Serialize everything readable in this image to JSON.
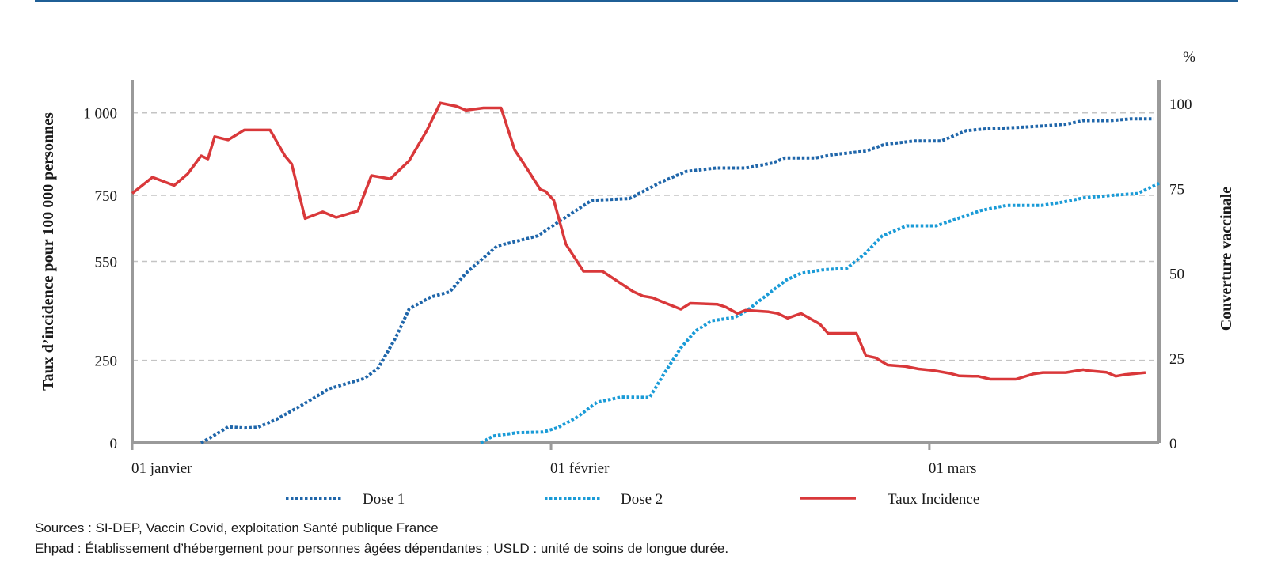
{
  "chart_data": {
    "type": "line",
    "ylabel_left": "Taux d’incidence pour 100 000 personnes",
    "ylabel_right": "Couverture vaccinale",
    "y_right_unit": "%",
    "ylim_left": [
      0,
      1100
    ],
    "ylim_right": [
      0,
      107
    ],
    "yticks_left": [
      {
        "value": 0,
        "label": "0"
      },
      {
        "value": 250,
        "label": "250"
      },
      {
        "value": 550,
        "label": "550"
      },
      {
        "value": 750,
        "label": "750"
      },
      {
        "value": 1000,
        "label": "1 000"
      }
    ],
    "yticks_right": [
      {
        "value": 0,
        "label": "0"
      },
      {
        "value": 25,
        "label": "25"
      },
      {
        "value": 50,
        "label": "50"
      },
      {
        "value": 75,
        "label": "75"
      },
      {
        "value": 100,
        "label": "100"
      }
    ],
    "xlim_days": [
      0,
      76
    ],
    "xticks": [
      {
        "day": 0,
        "label": "01 janvier"
      },
      {
        "day": 31,
        "label": "01 février"
      },
      {
        "day": 59,
        "label": "01 mars"
      }
    ],
    "grid": true,
    "legend_position": "bottom",
    "series": [
      {
        "name": "Taux Incidence",
        "axis": "left",
        "style": "solid",
        "color": "#d9383a",
        "points": [
          [
            0,
            756
          ],
          [
            1.5,
            805
          ],
          [
            3.1,
            780
          ],
          [
            4.1,
            815
          ],
          [
            5.1,
            870
          ],
          [
            5.6,
            860
          ],
          [
            6.1,
            928
          ],
          [
            7.1,
            918
          ],
          [
            8.3,
            948
          ],
          [
            10.2,
            948
          ],
          [
            11.3,
            870
          ],
          [
            11.8,
            845
          ],
          [
            12.8,
            680
          ],
          [
            14.1,
            700
          ],
          [
            15.1,
            683
          ],
          [
            16.7,
            703
          ],
          [
            17.7,
            810
          ],
          [
            19.1,
            800
          ],
          [
            20.5,
            855
          ],
          [
            21.8,
            946
          ],
          [
            22.8,
            1030
          ],
          [
            24,
            1020
          ],
          [
            24.7,
            1008
          ],
          [
            26,
            1015
          ],
          [
            27.3,
            1015
          ],
          [
            28.3,
            888
          ],
          [
            29,
            845
          ],
          [
            30.2,
            768
          ],
          [
            30.6,
            762
          ],
          [
            31.2,
            735
          ],
          [
            32.1,
            602
          ],
          [
            33.4,
            520
          ],
          [
            34.8,
            520
          ],
          [
            37.1,
            458
          ],
          [
            37.8,
            445
          ],
          [
            38.5,
            440
          ],
          [
            39.2,
            428
          ],
          [
            40.6,
            405
          ],
          [
            41.3,
            423
          ],
          [
            43.3,
            420
          ],
          [
            43.9,
            412
          ],
          [
            44.8,
            392
          ],
          [
            45.4,
            402
          ],
          [
            46.1,
            400
          ],
          [
            47.1,
            397
          ],
          [
            47.8,
            392
          ],
          [
            48.5,
            378
          ],
          [
            49.5,
            392
          ],
          [
            50.9,
            360
          ],
          [
            51.5,
            332
          ],
          [
            53.6,
            332
          ],
          [
            54.3,
            264
          ],
          [
            55,
            258
          ],
          [
            55.9,
            236
          ],
          [
            57.2,
            232
          ],
          [
            58.2,
            224
          ],
          [
            59.2,
            220
          ],
          [
            60.6,
            210
          ],
          [
            61.2,
            203
          ],
          [
            62.2,
            202
          ],
          [
            62.6,
            202
          ],
          [
            63.5,
            193
          ],
          [
            65.4,
            193
          ],
          [
            66.7,
            209
          ],
          [
            67.4,
            213
          ],
          [
            69.1,
            213
          ],
          [
            70.4,
            222
          ],
          [
            70.7,
            219
          ],
          [
            72.1,
            214
          ],
          [
            72.8,
            202
          ],
          [
            73.5,
            207
          ],
          [
            75,
            213
          ]
        ]
      },
      {
        "name": "Dose 1",
        "axis": "right",
        "style": "dotted",
        "color": "#1f66aa",
        "points": [
          [
            5.1,
            0
          ],
          [
            6.1,
            2.3
          ],
          [
            7.1,
            4.7
          ],
          [
            8.3,
            4.4
          ],
          [
            9.3,
            4.6
          ],
          [
            10.7,
            7
          ],
          [
            12.5,
            11
          ],
          [
            14.6,
            16
          ],
          [
            17.2,
            19
          ],
          [
            18.2,
            22
          ],
          [
            19.5,
            31
          ],
          [
            20.5,
            39.5
          ],
          [
            22.1,
            43
          ],
          [
            23.5,
            44.5
          ],
          [
            24.7,
            50
          ],
          [
            27,
            58
          ],
          [
            30,
            61
          ],
          [
            31.5,
            65
          ],
          [
            34,
            71.5
          ],
          [
            36.8,
            72
          ],
          [
            39.2,
            77
          ],
          [
            41,
            80
          ],
          [
            43.2,
            81
          ],
          [
            45.4,
            81
          ],
          [
            47.4,
            82.5
          ],
          [
            48.3,
            84
          ],
          [
            50.6,
            84
          ],
          [
            51.9,
            85
          ],
          [
            54.3,
            86
          ],
          [
            55.7,
            88
          ],
          [
            57.9,
            89
          ],
          [
            59.9,
            89
          ],
          [
            61.7,
            92
          ],
          [
            63,
            92.5
          ],
          [
            65.6,
            93
          ],
          [
            67.8,
            93.5
          ],
          [
            69.2,
            94
          ],
          [
            70.4,
            95
          ],
          [
            72.4,
            95
          ],
          [
            73.9,
            95.5
          ],
          [
            75.6,
            95.5
          ]
        ]
      },
      {
        "name": "Dose 2",
        "axis": "right",
        "style": "dotted",
        "color": "#1a9bd7",
        "points": [
          [
            25.8,
            0
          ],
          [
            26.7,
            2
          ],
          [
            28.5,
            3
          ],
          [
            30.4,
            3.2
          ],
          [
            31.5,
            4.5
          ],
          [
            32.9,
            7.5
          ],
          [
            34.4,
            12
          ],
          [
            36.2,
            13.5
          ],
          [
            38.3,
            13.4
          ],
          [
            39.3,
            20
          ],
          [
            40.6,
            28
          ],
          [
            41.7,
            33
          ],
          [
            42.9,
            36
          ],
          [
            44.6,
            37
          ],
          [
            45.5,
            39
          ],
          [
            47.1,
            44
          ],
          [
            48.4,
            48
          ],
          [
            49.5,
            50
          ],
          [
            51.1,
            51
          ],
          [
            52.9,
            51.5
          ],
          [
            54.3,
            56
          ],
          [
            55.5,
            61
          ],
          [
            57.3,
            64
          ],
          [
            59.5,
            64
          ],
          [
            61,
            66
          ],
          [
            62.8,
            68.5
          ],
          [
            64.7,
            70
          ],
          [
            67.3,
            70
          ],
          [
            68.9,
            71
          ],
          [
            70.5,
            72.3
          ],
          [
            72.6,
            73
          ],
          [
            74.4,
            73.5
          ],
          [
            76,
            76.5
          ]
        ]
      }
    ]
  },
  "footer": {
    "sources": "Sources : SI-DEP, Vaccin Covid, exploitation Santé publique France",
    "note": "Ehpad : Établissement d’hébergement pour personnes âgées dépendantes ; USLD : unité de soins de longue durée."
  }
}
